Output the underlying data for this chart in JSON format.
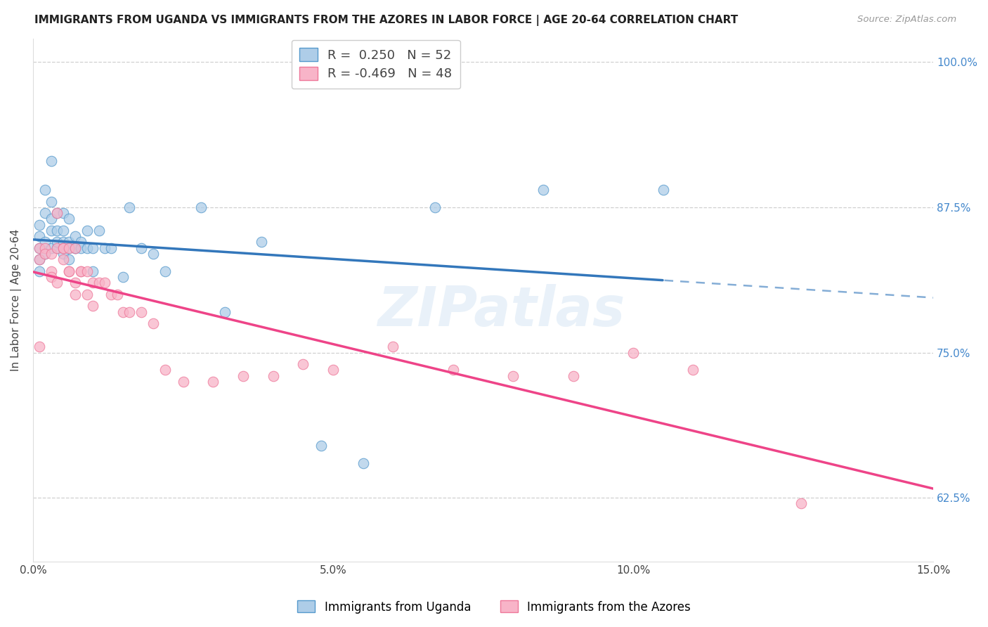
{
  "title": "IMMIGRANTS FROM UGANDA VS IMMIGRANTS FROM THE AZORES IN LABOR FORCE | AGE 20-64 CORRELATION CHART",
  "source": "Source: ZipAtlas.com",
  "ylabel_label": "In Labor Force | Age 20-64",
  "legend_blue_r": "R =  0.250",
  "legend_blue_n": "N = 52",
  "legend_pink_r": "R = -0.469",
  "legend_pink_n": "N = 48",
  "legend1": "Immigrants from Uganda",
  "legend2": "Immigrants from the Azores",
  "blue_color": "#aecde8",
  "pink_color": "#f8b4c8",
  "blue_edge_color": "#5599cc",
  "pink_edge_color": "#ee7799",
  "blue_line_color": "#3377bb",
  "pink_line_color": "#ee4488",
  "right_tick_color": "#4488cc",
  "watermark_text": "ZIPatlas",
  "blue_scatter_x": [
    0.001,
    0.001,
    0.001,
    0.001,
    0.001,
    0.002,
    0.002,
    0.002,
    0.002,
    0.003,
    0.003,
    0.003,
    0.003,
    0.003,
    0.004,
    0.004,
    0.004,
    0.004,
    0.005,
    0.005,
    0.005,
    0.005,
    0.005,
    0.006,
    0.006,
    0.006,
    0.006,
    0.007,
    0.007,
    0.007,
    0.008,
    0.008,
    0.009,
    0.009,
    0.01,
    0.01,
    0.011,
    0.012,
    0.013,
    0.015,
    0.016,
    0.018,
    0.02,
    0.022,
    0.028,
    0.032,
    0.038,
    0.048,
    0.055,
    0.067,
    0.085,
    0.105
  ],
  "blue_scatter_y": [
    0.82,
    0.83,
    0.84,
    0.85,
    0.86,
    0.835,
    0.845,
    0.87,
    0.89,
    0.84,
    0.855,
    0.865,
    0.88,
    0.915,
    0.84,
    0.855,
    0.87,
    0.845,
    0.845,
    0.855,
    0.87,
    0.84,
    0.835,
    0.845,
    0.865,
    0.84,
    0.83,
    0.85,
    0.84,
    0.84,
    0.845,
    0.84,
    0.855,
    0.84,
    0.84,
    0.82,
    0.855,
    0.84,
    0.84,
    0.815,
    0.875,
    0.84,
    0.835,
    0.82,
    0.875,
    0.785,
    0.845,
    0.67,
    0.655,
    0.875,
    0.89,
    0.89
  ],
  "pink_scatter_x": [
    0.001,
    0.001,
    0.001,
    0.002,
    0.002,
    0.003,
    0.003,
    0.003,
    0.004,
    0.004,
    0.004,
    0.005,
    0.005,
    0.005,
    0.006,
    0.006,
    0.006,
    0.007,
    0.007,
    0.007,
    0.008,
    0.008,
    0.009,
    0.009,
    0.01,
    0.01,
    0.011,
    0.012,
    0.013,
    0.014,
    0.015,
    0.016,
    0.018,
    0.02,
    0.022,
    0.025,
    0.03,
    0.035,
    0.04,
    0.045,
    0.05,
    0.06,
    0.07,
    0.08,
    0.09,
    0.1,
    0.11,
    0.128
  ],
  "pink_scatter_y": [
    0.84,
    0.83,
    0.755,
    0.84,
    0.835,
    0.835,
    0.82,
    0.815,
    0.87,
    0.84,
    0.81,
    0.84,
    0.84,
    0.83,
    0.84,
    0.82,
    0.82,
    0.84,
    0.81,
    0.8,
    0.82,
    0.82,
    0.82,
    0.8,
    0.81,
    0.79,
    0.81,
    0.81,
    0.8,
    0.8,
    0.785,
    0.785,
    0.785,
    0.775,
    0.735,
    0.725,
    0.725,
    0.73,
    0.73,
    0.74,
    0.735,
    0.755,
    0.735,
    0.73,
    0.73,
    0.75,
    0.735,
    0.62
  ],
  "xmin": 0.0,
  "xmax": 0.15,
  "ymin": 0.57,
  "ymax": 1.02,
  "yticks": [
    0.625,
    0.75,
    0.875,
    1.0
  ],
  "ytick_labels": [
    "62.5%",
    "75.0%",
    "87.5%",
    "100.0%"
  ],
  "xticks": [
    0.0,
    0.05,
    0.1,
    0.15
  ],
  "xtick_labels": [
    "0.0%",
    "5.0%",
    "10.0%",
    "15.0%"
  ]
}
